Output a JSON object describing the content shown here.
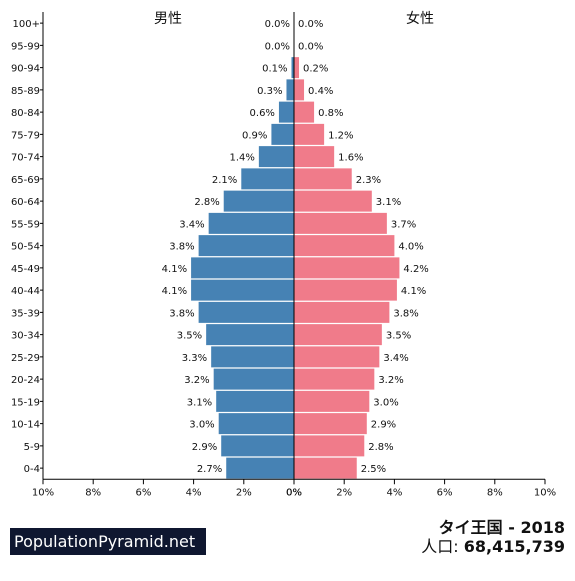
{
  "brand": "PopulationPyramid.net",
  "country_year": "タイ王国 - 2018",
  "population_label": "人口:",
  "population_value": "68,415,739",
  "colors": {
    "male": "#4682b4",
    "female": "#f07b8a",
    "axis": "#000000"
  },
  "chart_data": {
    "type": "bar",
    "orientation": "horizontal-population-pyramid",
    "categories": [
      "100+",
      "95-99",
      "90-94",
      "85-89",
      "80-84",
      "75-79",
      "70-74",
      "65-69",
      "60-64",
      "55-59",
      "50-54",
      "45-49",
      "40-44",
      "35-39",
      "30-34",
      "25-29",
      "20-24",
      "15-19",
      "10-14",
      "5-9",
      "0-4"
    ],
    "series": [
      {
        "name": "男性",
        "values": [
          0.0,
          0.0,
          0.1,
          0.3,
          0.6,
          0.9,
          1.4,
          2.1,
          2.8,
          3.4,
          3.8,
          4.1,
          4.1,
          3.8,
          3.5,
          3.3,
          3.2,
          3.1,
          3.0,
          2.9,
          2.7
        ],
        "labels": [
          "0.0%",
          "0.0%",
          "0.1%",
          "0.3%",
          "0.6%",
          "0.9%",
          "1.4%",
          "2.1%",
          "2.8%",
          "3.4%",
          "3.8%",
          "4.1%",
          "4.1%",
          "3.8%",
          "3.5%",
          "3.3%",
          "3.2%",
          "3.1%",
          "3.0%",
          "2.9%",
          "2.7%"
        ]
      },
      {
        "name": "女性",
        "values": [
          0.0,
          0.0,
          0.2,
          0.4,
          0.8,
          1.2,
          1.6,
          2.3,
          3.1,
          3.7,
          4.0,
          4.2,
          4.1,
          3.8,
          3.5,
          3.4,
          3.2,
          3.0,
          2.9,
          2.8,
          2.5
        ],
        "labels": [
          "0.0%",
          "0.0%",
          "0.2%",
          "0.4%",
          "0.8%",
          "1.2%",
          "1.6%",
          "2.3%",
          "3.1%",
          "3.7%",
          "4.0%",
          "4.2%",
          "4.1%",
          "3.8%",
          "3.5%",
          "3.4%",
          "3.2%",
          "3.0%",
          "2.9%",
          "2.8%",
          "2.5%"
        ]
      }
    ],
    "xlim": [
      0,
      10
    ],
    "left_ticks": [
      "10%",
      "8%",
      "6%",
      "4%",
      "2%",
      "0%"
    ],
    "right_ticks": [
      "0%",
      "2%",
      "4%",
      "6%",
      "8%",
      "10%"
    ],
    "tick_values": [
      10,
      8,
      6,
      4,
      2,
      0
    ]
  }
}
